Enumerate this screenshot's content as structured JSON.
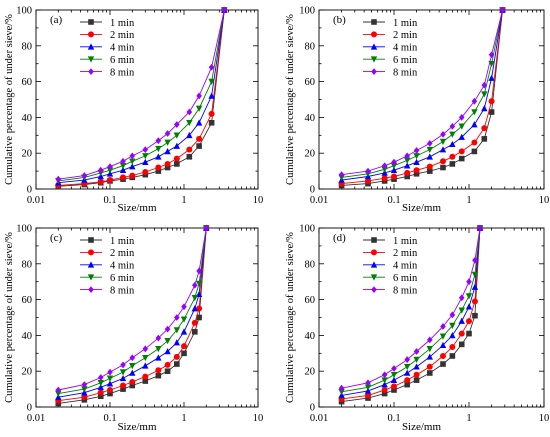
{
  "figure": {
    "axis_color": "#000000",
    "series_styles": [
      {
        "name": "1 min",
        "color": "#333333",
        "marker": "square"
      },
      {
        "name": "2 min",
        "color": "#ff0000",
        "marker": "circle"
      },
      {
        "name": "4 min",
        "color": "#0000ff",
        "marker": "triangle-up"
      },
      {
        "name": "6 min",
        "color": "#008000",
        "marker": "triangle-down"
      },
      {
        "name": "8 min",
        "color": "#9900ff",
        "marker": "diamond"
      }
    ]
  },
  "chart_data": [
    {
      "type": "line",
      "panel_label": "(a)",
      "xlabel": "Size/mm",
      "ylabel": "Cumulative percentage of under sieve/%",
      "x_scale": "log",
      "xlim": [
        0.01,
        10
      ],
      "ylim": [
        0,
        100
      ],
      "x_ticks": [
        "0.01",
        "0.1",
        "1",
        "10"
      ],
      "y_ticks": [
        "0",
        "20",
        "40",
        "60",
        "80",
        "100"
      ],
      "legend": "top-left",
      "grid": false,
      "x": [
        0.02,
        0.045,
        0.075,
        0.1,
        0.15,
        0.2,
        0.3,
        0.45,
        0.6,
        0.8,
        1.18,
        1.6,
        2.36,
        3.5
      ],
      "series": [
        {
          "name": "1 min",
          "values": [
            1.5,
            2.5,
            3.5,
            4.5,
            5.5,
            6.5,
            8,
            10,
            12,
            14,
            18,
            24,
            37,
            100
          ]
        },
        {
          "name": "2 min",
          "values": [
            2,
            3,
            4,
            5,
            6.5,
            7.5,
            9.5,
            12,
            14,
            17,
            22,
            28,
            42,
            100
          ]
        },
        {
          "name": "4 min",
          "values": [
            3.5,
            5,
            7,
            8.5,
            10.5,
            12.5,
            15,
            18,
            21,
            24,
            30,
            37,
            52,
            100
          ]
        },
        {
          "name": "6 min",
          "values": [
            4.5,
            6.5,
            9,
            10.5,
            13,
            15.5,
            18.5,
            22.5,
            26,
            30,
            37,
            45,
            60,
            100
          ]
        },
        {
          "name": "8 min",
          "values": [
            5.5,
            7.5,
            10.5,
            12.5,
            15.5,
            18.5,
            22,
            27,
            31,
            36,
            43,
            52,
            68,
            100
          ]
        }
      ]
    },
    {
      "type": "line",
      "panel_label": "(b)",
      "xlabel": "Size/mm",
      "ylabel": "Cumulative percentage of under sieve/%",
      "x_scale": "log",
      "xlim": [
        0.01,
        10
      ],
      "ylim": [
        0,
        100
      ],
      "x_ticks": [
        "0.01",
        "0.1",
        "1",
        "10"
      ],
      "y_ticks": [
        "0",
        "20",
        "40",
        "60",
        "80",
        "100"
      ],
      "legend": "top-left",
      "grid": false,
      "x": [
        0.02,
        0.045,
        0.075,
        0.1,
        0.15,
        0.2,
        0.3,
        0.45,
        0.6,
        0.8,
        1.18,
        1.6,
        2.0,
        2.8
      ],
      "series": [
        {
          "name": "1 min",
          "values": [
            2,
            3,
            4.5,
            5.5,
            7,
            8.5,
            10,
            12,
            14,
            17,
            21,
            28,
            43,
            100
          ]
        },
        {
          "name": "2 min",
          "values": [
            3,
            4.5,
            6,
            7,
            9,
            10.5,
            12.5,
            15.5,
            18,
            21,
            26,
            34,
            49,
            100
          ]
        },
        {
          "name": "4 min",
          "values": [
            5,
            7,
            9,
            10.5,
            13,
            15,
            18,
            22,
            25,
            29,
            36,
            45,
            62,
            100
          ]
        },
        {
          "name": "6 min",
          "values": [
            6.5,
            8.5,
            11,
            13,
            16,
            18.5,
            22,
            26.5,
            30.5,
            35,
            43,
            53,
            70,
            100
          ]
        },
        {
          "name": "8 min",
          "values": [
            8,
            10,
            13,
            15,
            18.5,
            21.5,
            25.5,
            30.5,
            35,
            40,
            49,
            58,
            75,
            100
          ]
        }
      ]
    },
    {
      "type": "line",
      "panel_label": "(c)",
      "xlabel": "Size/mm",
      "ylabel": "Cumulative percentage of under sieve/%",
      "x_scale": "log",
      "xlim": [
        0.01,
        10
      ],
      "ylim": [
        0,
        100
      ],
      "x_ticks": [
        "0.01",
        "0.1",
        "1",
        "10"
      ],
      "y_ticks": [
        "0",
        "20",
        "40",
        "60",
        "80",
        "100"
      ],
      "legend": "top-left",
      "grid": false,
      "x": [
        0.02,
        0.045,
        0.075,
        0.1,
        0.15,
        0.2,
        0.3,
        0.45,
        0.6,
        0.8,
        1.0,
        1.4,
        1.6,
        2.0
      ],
      "series": [
        {
          "name": "1 min",
          "values": [
            2,
            4,
            6,
            7.5,
            10,
            12,
            14.5,
            17.5,
            20,
            24,
            30,
            42,
            50,
            100
          ]
        },
        {
          "name": "2 min",
          "values": [
            3.5,
            5.5,
            8,
            9.5,
            12,
            14,
            17,
            20.5,
            23.5,
            28,
            34,
            47,
            55,
            100
          ]
        },
        {
          "name": "4 min",
          "values": [
            5.5,
            8,
            11,
            13,
            16,
            19,
            23,
            27.5,
            31,
            36,
            42,
            55,
            63,
            100
          ]
        },
        {
          "name": "6 min",
          "values": [
            7.5,
            10,
            13.5,
            16,
            19.5,
            23,
            27.5,
            32.5,
            37,
            43,
            49,
            61,
            69,
            100
          ]
        },
        {
          "name": "8 min",
          "values": [
            9.5,
            12.5,
            16.5,
            19.5,
            23.5,
            27.5,
            32.5,
            38.5,
            43.5,
            50,
            56,
            68,
            76,
            100
          ]
        }
      ]
    },
    {
      "type": "line",
      "panel_label": "(d)",
      "xlabel": "Size/mm",
      "ylabel": "Cumulative percentage of under sieve/%",
      "x_scale": "log",
      "xlim": [
        0.01,
        10
      ],
      "ylim": [
        0,
        100
      ],
      "x_ticks": [
        "0.01",
        "0.1",
        "1",
        "10"
      ],
      "y_ticks": [
        "0",
        "20",
        "40",
        "60",
        "80",
        "100"
      ],
      "legend": "top-left",
      "grid": false,
      "x": [
        0.02,
        0.045,
        0.075,
        0.1,
        0.15,
        0.2,
        0.3,
        0.45,
        0.6,
        0.8,
        1.0,
        1.2,
        1.4
      ],
      "series": [
        {
          "name": "1 min",
          "values": [
            3,
            5,
            7.5,
            9.5,
            12.5,
            15,
            19,
            24,
            28.5,
            35,
            41,
            51,
            100
          ]
        },
        {
          "name": "2 min",
          "values": [
            4.5,
            6.5,
            9.5,
            11.5,
            15,
            18,
            22.5,
            28.5,
            33.5,
            41,
            48,
            59,
            100
          ]
        },
        {
          "name": "4 min",
          "values": [
            6.5,
            9,
            12.5,
            15,
            19,
            22.5,
            28,
            34.5,
            40,
            48,
            56,
            67,
            100
          ]
        },
        {
          "name": "6 min",
          "values": [
            8.5,
            11,
            15,
            18,
            22.5,
            26.5,
            32.5,
            39.5,
            45.5,
            54,
            62,
            74,
            100
          ]
        },
        {
          "name": "8 min",
          "values": [
            10.5,
            13.5,
            18,
            21.5,
            26.5,
            31,
            37.5,
            45,
            51.5,
            61,
            70,
            82,
            100
          ]
        }
      ]
    }
  ]
}
